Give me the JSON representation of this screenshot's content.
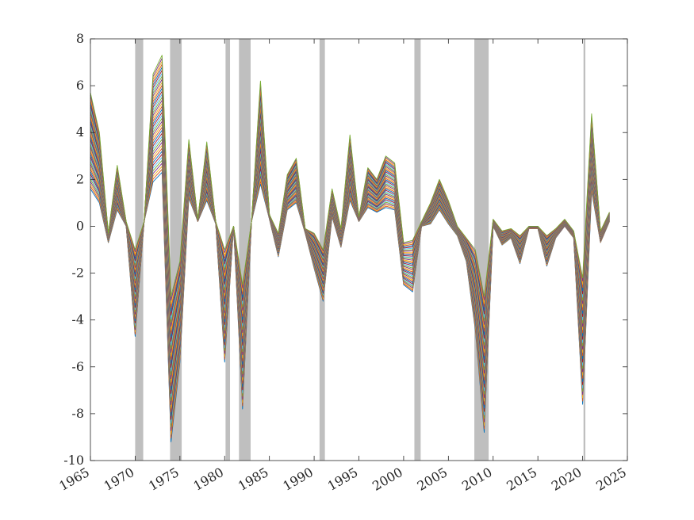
{
  "chart_data": {
    "type": "line",
    "title": "",
    "xlabel": "",
    "ylabel": "",
    "xlim": [
      1965,
      2025
    ],
    "ylim": [
      -10,
      8
    ],
    "grid": false,
    "legend": "none",
    "xticks": [
      1965,
      1970,
      1975,
      1980,
      1985,
      1990,
      1995,
      2000,
      2005,
      2010,
      2015,
      2020,
      2025
    ],
    "yticks": [
      -10,
      -8,
      -6,
      -4,
      -2,
      0,
      2,
      4,
      6,
      8
    ],
    "recession_shading": [
      [
        1970.0,
        1970.9
      ],
      [
        1973.9,
        1975.2
      ],
      [
        1980.1,
        1980.6
      ],
      [
        1981.6,
        1982.9
      ],
      [
        1990.6,
        1991.2
      ],
      [
        2001.2,
        2001.9
      ],
      [
        2007.9,
        2009.5
      ],
      [
        2020.1,
        2020.3
      ]
    ],
    "x": [
      1965,
      1966,
      1967,
      1968,
      1969,
      1970,
      1971,
      1972,
      1973,
      1974,
      1975,
      1976,
      1977,
      1978,
      1979,
      1980,
      1981,
      1982,
      1983,
      1984,
      1985,
      1986,
      1987,
      1988,
      1989,
      1990,
      1991,
      1992,
      1993,
      1994,
      1995,
      1996,
      1997,
      1998,
      1999,
      2000,
      2001,
      2002,
      2003,
      2004,
      2005,
      2006,
      2007,
      2008,
      2009,
      2010,
      2011,
      2012,
      2013,
      2014,
      2015,
      2016,
      2017,
      2018,
      2019,
      2020,
      2021,
      2022,
      2023
    ],
    "envelope": {
      "upper": [
        5.7,
        4.0,
        -0.3,
        2.6,
        0.2,
        -1.0,
        0.2,
        6.5,
        7.3,
        -3.0,
        -1.5,
        3.7,
        0.3,
        3.6,
        0.2,
        -1.0,
        0.0,
        -2.5,
        0.2,
        6.2,
        0.5,
        -0.3,
        2.2,
        2.9,
        -0.1,
        -0.3,
        -1.0,
        1.6,
        -0.1,
        3.9,
        0.4,
        2.5,
        2.0,
        3.0,
        2.7,
        -0.7,
        -0.6,
        0.2,
        1.0,
        2.0,
        1.1,
        0.0,
        -0.5,
        -1.0,
        -3.0,
        0.3,
        -0.2,
        -0.1,
        -0.4,
        0.0,
        0.0,
        -0.4,
        -0.1,
        0.3,
        -0.2,
        -2.2,
        4.8,
        -0.2,
        0.6
      ],
      "lower": [
        1.6,
        1.0,
        -0.7,
        0.7,
        0.0,
        -4.7,
        0.2,
        1.9,
        2.3,
        -9.2,
        -5.8,
        1.2,
        0.2,
        1.1,
        0.1,
        -5.8,
        0.0,
        -7.8,
        0.2,
        1.8,
        0.3,
        -1.3,
        0.7,
        1.0,
        -0.3,
        -1.8,
        -3.2,
        0.4,
        -0.9,
        1.1,
        0.2,
        0.8,
        0.6,
        0.8,
        0.7,
        -2.5,
        -2.8,
        0.0,
        0.1,
        0.7,
        0.1,
        -0.4,
        -1.5,
        -4.4,
        -8.8,
        0.0,
        -0.8,
        -0.5,
        -1.6,
        -0.1,
        -0.1,
        -1.7,
        -0.5,
        0.0,
        -0.5,
        -7.6,
        1.5,
        -0.7,
        0.2
      ]
    },
    "series_count": 40,
    "series_colors": [
      "#0072bd",
      "#d95319",
      "#edb120",
      "#7e2f8e",
      "#77ac30",
      "#4dbeee",
      "#a2142f"
    ]
  }
}
